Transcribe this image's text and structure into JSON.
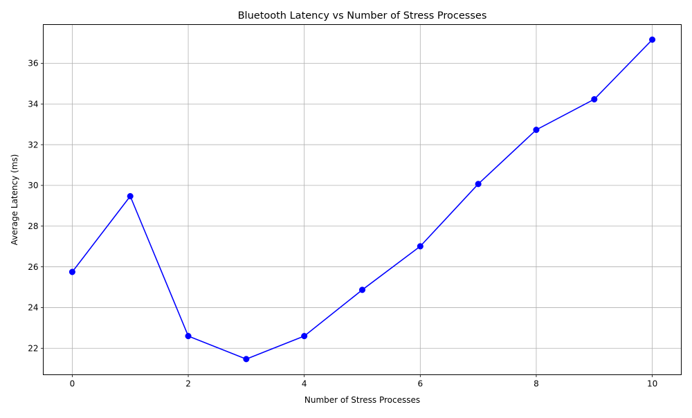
{
  "chart_data": {
    "type": "line",
    "title": "Bluetooth Latency vs Number of Stress Processes",
    "xlabel": "Number of Stress Processes",
    "ylabel": "Average Latency (ms)",
    "x": [
      0,
      1,
      2,
      3,
      4,
      5,
      6,
      7,
      8,
      9,
      10
    ],
    "series": [
      {
        "values": [
          25.75,
          29.47,
          22.6,
          21.47,
          22.6,
          24.87,
          27.01,
          30.07,
          32.73,
          34.23,
          37.16
        ],
        "color": "#0000ff",
        "marker": "circle"
      }
    ],
    "xlim": [
      -0.5,
      10.5
    ],
    "ylim": [
      20.7,
      37.9
    ],
    "xticks": [
      0,
      2,
      4,
      6,
      8,
      10
    ],
    "yticks": [
      22,
      24,
      26,
      28,
      30,
      32,
      34,
      36
    ],
    "grid": true,
    "legend": "none"
  }
}
